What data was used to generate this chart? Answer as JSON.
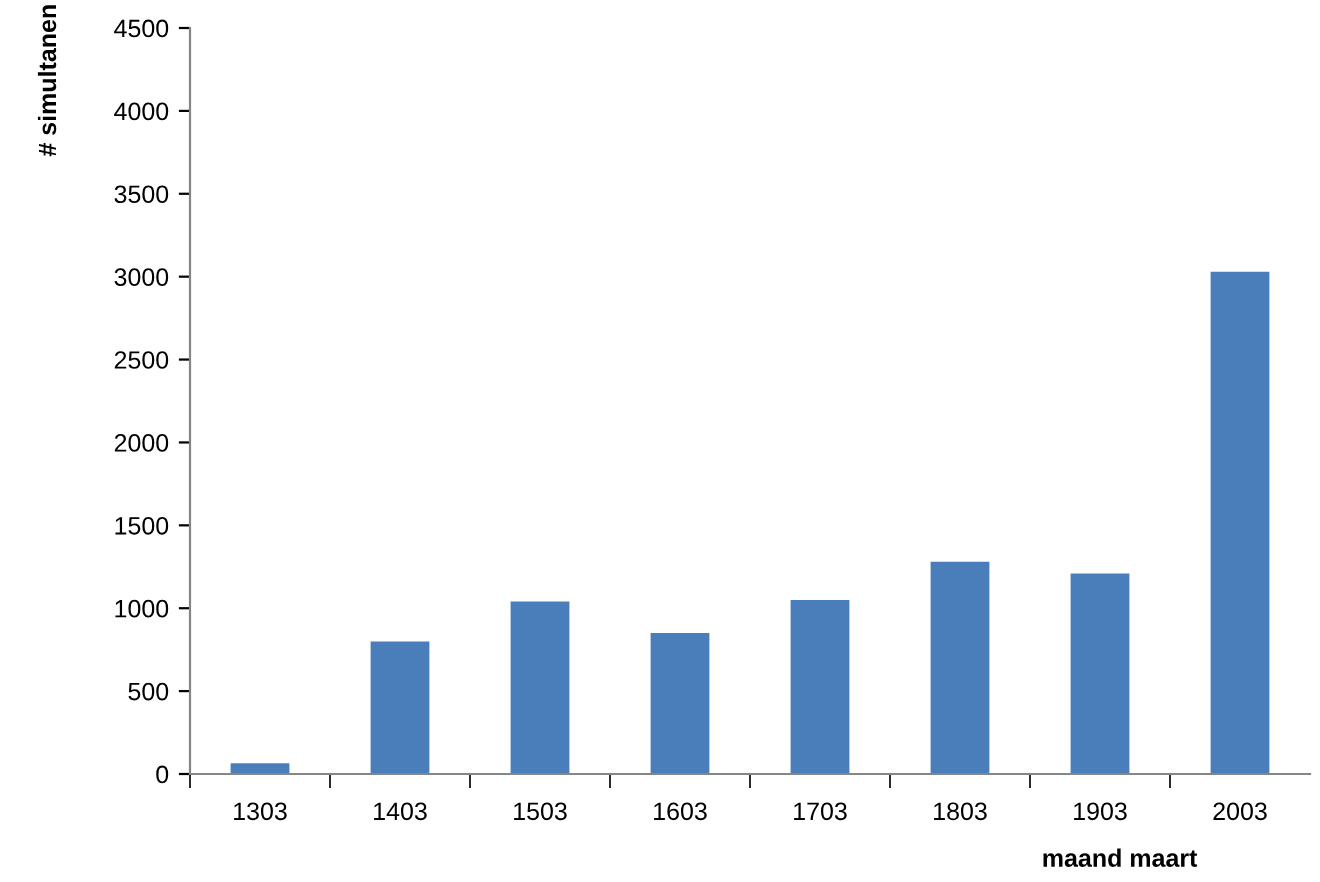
{
  "chart_data": {
    "type": "bar",
    "xlabel": "maand maart",
    "ylabel": "# simultanen",
    "categories": [
      "1303",
      "1403",
      "1503",
      "1603",
      "1703",
      "1803",
      "1903",
      "2003"
    ],
    "values": [
      65,
      800,
      1040,
      850,
      1050,
      1280,
      1210,
      3030
    ],
    "color": "#4a7ebb",
    "ylim": [
      0,
      4500
    ],
    "yticks": [
      0,
      500,
      1000,
      1500,
      2000,
      2500,
      3000,
      3500,
      4000,
      4500
    ],
    "grid": false
  }
}
